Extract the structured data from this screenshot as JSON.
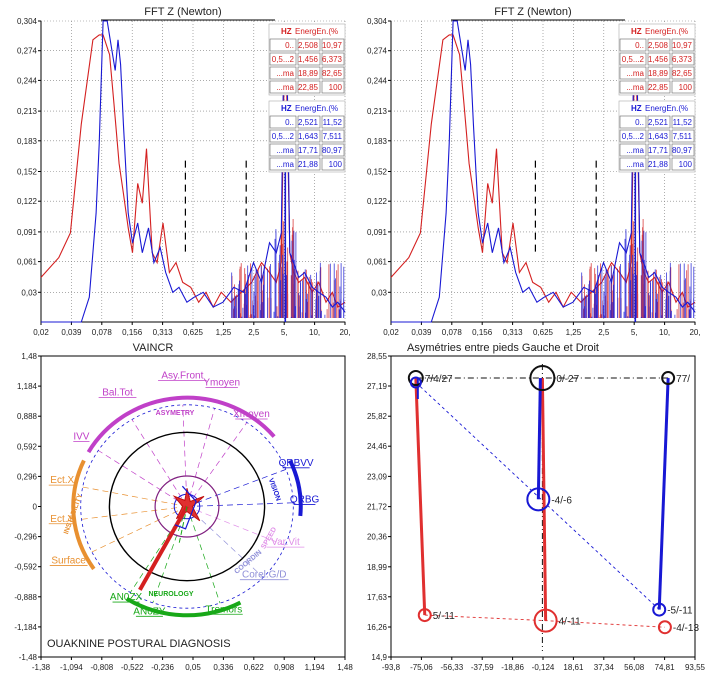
{
  "chart_data": [
    {
      "type": "line",
      "title": "FFT Z (Newton)",
      "xlabel": "VAINCR",
      "x_ticks": [
        "0,02",
        "0,039",
        "0,078",
        "0,156",
        "0,313",
        "0,625",
        "1,25",
        "2,5",
        "5,",
        "10,",
        "20,"
      ],
      "y_ticks": [
        "0,03",
        "0,061",
        "0,091",
        "0,122",
        "0,152",
        "0,183",
        "0,213",
        "0,244",
        "0,274",
        "0,304"
      ],
      "ylim": [
        0,
        0.304
      ],
      "marker_bands": [
        5,
        7
      ],
      "series": [
        {
          "color": "#d42020",
          "x": [
            0.02,
            0.03,
            0.039,
            0.05,
            0.065,
            0.075,
            0.082,
            0.095,
            0.105,
            0.118,
            0.13,
            0.145,
            0.16,
            0.18,
            0.2,
            0.22,
            0.25,
            0.28,
            0.32,
            0.37,
            0.43,
            0.5,
            0.6,
            0.72,
            0.85,
            1.0,
            1.2,
            1.5,
            1.9,
            2.4,
            3.0,
            3.6,
            4.2,
            4.7,
            5.0,
            5.3,
            5.7,
            6.2,
            7.0,
            8.0,
            9.5,
            11,
            13,
            15,
            17,
            20
          ],
          "y": [
            0.045,
            0.065,
            0.09,
            0.2,
            0.285,
            0.29,
            0.29,
            0.27,
            0.22,
            0.16,
            0.13,
            0.095,
            0.07,
            0.14,
            0.12,
            0.175,
            0.07,
            0.06,
            0.1,
            0.05,
            0.06,
            0.04,
            0.035,
            0.02,
            0.03,
            0.015,
            0.03,
            0.02,
            0.03,
            0.04,
            0.06,
            0.05,
            0.04,
            0.06,
            0.24,
            0.24,
            0.07,
            0.05,
            0.04,
            0.045,
            0.03,
            0.04,
            0.02,
            0.03,
            0.015,
            0.02
          ]
        },
        {
          "color": "#1818d4",
          "x": [
            0.02,
            0.03,
            0.039,
            0.05,
            0.06,
            0.07,
            0.075,
            0.082,
            0.09,
            0.1,
            0.108,
            0.115,
            0.122,
            0.13,
            0.145,
            0.16,
            0.18,
            0.2,
            0.23,
            0.26,
            0.3,
            0.34,
            0.4,
            0.46,
            0.55,
            0.65,
            0.8,
            1.0,
            1.25,
            1.6,
            2.0,
            2.5,
            3.0,
            3.6,
            4.2,
            4.7,
            5.0,
            5.3,
            5.7,
            6.2,
            7.0,
            8.0,
            9.5,
            11,
            13,
            15,
            17,
            20
          ],
          "y": [
            0.0,
            0.0,
            0.0,
            0.0,
            0.025,
            0.11,
            0.18,
            0.304,
            0.304,
            0.275,
            0.254,
            0.285,
            0.26,
            0.2,
            0.11,
            0.08,
            0.1,
            0.07,
            0.095,
            0.06,
            0.075,
            0.05,
            0.03,
            0.035,
            0.02,
            0.025,
            0.03,
            0.015,
            0.02,
            0.035,
            0.03,
            0.06,
            0.04,
            0.08,
            0.07,
            0.09,
            0.29,
            0.29,
            0.07,
            0.06,
            0.045,
            0.05,
            0.035,
            0.03,
            0.025,
            0.015,
            0.02,
            0.01
          ]
        }
      ],
      "legend_tables": [
        {
          "color": "#d42020",
          "header": [
            "HZ",
            "EnergEn.(%"
          ],
          "rows": [
            [
              "0..",
              "2,508",
              "10,97"
            ],
            [
              "0,5...2",
              "1,456",
              "6,373"
            ],
            [
              "...ma",
              "18,89",
              "82,65"
            ],
            [
              "...ma",
              "22,85",
              "100"
            ]
          ]
        },
        {
          "color": "#1818d4",
          "header": [
            "HZ",
            "EnergEn.(%"
          ],
          "rows": [
            [
              "0..",
              "2,521",
              "11,52"
            ],
            [
              "0,5...2",
              "1,643",
              "7,511"
            ],
            [
              "...ma",
              "17,71",
              "80,97"
            ],
            [
              "...ma",
              "21,88",
              "100"
            ]
          ]
        }
      ]
    },
    {
      "type": "line",
      "title": "FFT Z (Newton)",
      "xlabel": "Asymétries entre pieds Gauche et Droit",
      "x_ticks": [
        "0,02",
        "0,039",
        "0,078",
        "0,156",
        "0,313",
        "0,625",
        "1,25",
        "2,5",
        "5,",
        "10,",
        "20,"
      ],
      "y_ticks": [
        "0,03",
        "0,061",
        "0,091",
        "0,122",
        "0,152",
        "0,183",
        "0,213",
        "0,244",
        "0,274",
        "0,304"
      ],
      "ylim": [
        0,
        0.304
      ],
      "marker_bands": [
        5,
        7
      ],
      "same_series_as": 0,
      "legend_tables": [
        {
          "color": "#d42020",
          "header": [
            "HZ",
            "EnergEn.(%"
          ],
          "rows": [
            [
              "0..",
              "2,508",
              "10,97"
            ],
            [
              "0,5...2",
              "1,456",
              "6,373"
            ],
            [
              "...ma",
              "18,89",
              "82,65"
            ],
            [
              "...ma",
              "22,85",
              "100"
            ]
          ]
        },
        {
          "color": "#1818d4",
          "header": [
            "HZ",
            "EnergEn.(%"
          ],
          "rows": [
            [
              "0..",
              "2,521",
              "11,52"
            ],
            [
              "0,5...2",
              "1,643",
              "7,511"
            ],
            [
              "...ma",
              "17,71",
              "80,97"
            ],
            [
              "...ma",
              "21,88",
              "100"
            ]
          ]
        }
      ]
    },
    {
      "type": "radar",
      "title": "OUAKNINE POSTURAL DIAGNOSIS",
      "x_ticks": [
        "-1,38",
        "-1,094",
        "-0,808",
        "-0,522",
        "-0,236",
        "0,05",
        "0,336",
        "0,622",
        "0,908",
        "1,194",
        "1,48"
      ],
      "y_ticks": [
        "-1,48",
        "-1,184",
        "-0,888",
        "-0,592",
        "-0,296",
        "0",
        "0,296",
        "0,592",
        "0,888",
        "1,184",
        "1,48"
      ],
      "xlim": [
        -1.38,
        1.48
      ],
      "ylim": [
        -1.48,
        1.48
      ],
      "labels": [
        {
          "text": "Asy.Front",
          "x": -0.05,
          "y": 1.26,
          "color": "#c040c8"
        },
        {
          "text": "Ymoyen",
          "x": 0.32,
          "y": 1.19,
          "color": "#c040c8"
        },
        {
          "text": "Bal.Tot",
          "x": -0.66,
          "y": 1.09,
          "color": "#c040c8"
        },
        {
          "text": "Xmoyen",
          "x": 0.6,
          "y": 0.88,
          "color": "#c040c8"
        },
        {
          "text": "IVV",
          "x": -1.0,
          "y": 0.66,
          "color": "#c040c8"
        },
        {
          "text": "QRBVV",
          "x": 1.02,
          "y": 0.4,
          "color": "#1818d4"
        },
        {
          "text": "Ect.X",
          "x": -1.18,
          "y": 0.23,
          "color": "#e89030"
        },
        {
          "text": "QRBG",
          "x": 1.1,
          "y": 0.04,
          "color": "#1818d4"
        },
        {
          "text": "Ect.Y",
          "x": -1.18,
          "y": -0.15,
          "color": "#e89030"
        },
        {
          "text": "Var.Vit",
          "x": 0.92,
          "y": -0.38,
          "color": "#e090e8"
        },
        {
          "text": "Surface",
          "x": -1.12,
          "y": -0.56,
          "color": "#e89030"
        },
        {
          "text": "Corel.G/D",
          "x": 0.72,
          "y": -0.7,
          "color": "#9090d8"
        },
        {
          "text": "AN0ZX",
          "x": -0.58,
          "y": -0.92,
          "color": "#18a818"
        },
        {
          "text": "AN0ZY",
          "x": -0.36,
          "y": -1.06,
          "color": "#18a818"
        },
        {
          "text": "Tremors",
          "x": 0.34,
          "y": -1.04,
          "color": "#18a818"
        }
      ],
      "arc_labels": [
        {
          "text": "ASYMETRY",
          "color": "#c040c8"
        },
        {
          "text": "INSTABILITY",
          "color": "#e89030"
        },
        {
          "text": "NEUROLOGY",
          "color": "#18a818"
        },
        {
          "text": "VISION",
          "color": "#1818d4"
        },
        {
          "text": "COORDIN",
          "color": "#9090d8"
        },
        {
          "text": "SPEED",
          "color": "#e090e8"
        }
      ]
    },
    {
      "type": "scatter",
      "x_ticks": [
        "-93,8",
        "-75,06",
        "-56,33",
        "-37,59",
        "-18,86",
        "-0,124",
        "18,61",
        "37,34",
        "56,08",
        "74,81",
        "93,55"
      ],
      "y_ticks": [
        "14,9",
        "16,26",
        "17,63",
        "18,99",
        "20,36",
        "21,72",
        "23,09",
        "24,46",
        "25,82",
        "27,19",
        "28,55"
      ],
      "xlim": [
        -93.8,
        93.55
      ],
      "ylim": [
        14.9,
        28.55
      ],
      "points": [
        {
          "x": -78.5,
          "y": 27.55,
          "color": "#111111",
          "label": "7/4/27"
        },
        {
          "x": -78.5,
          "y": 27.35,
          "color": "#1818d4",
          "label": ""
        },
        {
          "x": -0.5,
          "y": 27.55,
          "color": "#111111",
          "label": "0/-27"
        },
        {
          "x": 77.0,
          "y": 27.55,
          "color": "#111111",
          "label": "77/"
        },
        {
          "x": -3.0,
          "y": 22.05,
          "color": "#1818d4",
          "label": "-4/-6"
        },
        {
          "x": -73.0,
          "y": 16.8,
          "color": "#e03030",
          "label": "5/-11"
        },
        {
          "x": 1.5,
          "y": 16.55,
          "color": "#e03030",
          "label": "4/-11"
        },
        {
          "x": 71.5,
          "y": 17.05,
          "color": "#1818d4",
          "label": "-5/-11"
        },
        {
          "x": 75.0,
          "y": 16.25,
          "color": "#e03030",
          "label": "-4/-13"
        }
      ]
    }
  ]
}
